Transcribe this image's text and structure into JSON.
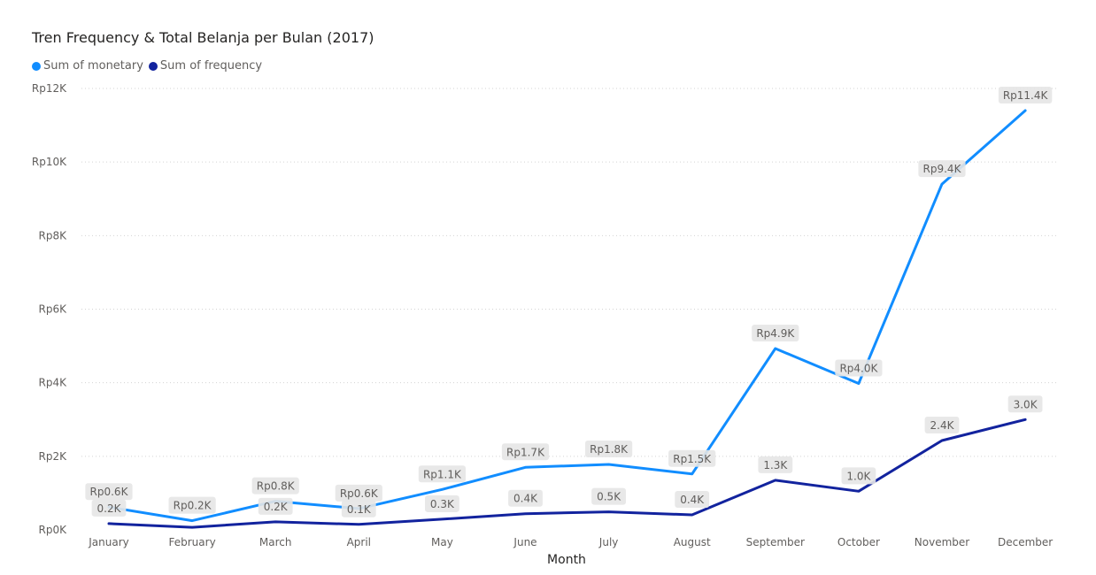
{
  "chart_data": {
    "type": "line",
    "title": "Tren Frequency & Total Belanja per Bulan (2017)",
    "xlabel": "Month",
    "ylabel": "",
    "categories": [
      "January",
      "February",
      "March",
      "April",
      "May",
      "June",
      "July",
      "August",
      "September",
      "October",
      "November",
      "December"
    ],
    "y_ticks": [
      "Rp0K",
      "Rp2K",
      "Rp4K",
      "Rp6K",
      "Rp8K",
      "Rp10K",
      "Rp12K"
    ],
    "ylim": [
      0,
      12000
    ],
    "grid": true,
    "legend_position": "top-left",
    "series": [
      {
        "name": "Sum of monetary",
        "color": "#118dff",
        "values": [
          620,
          250,
          780,
          580,
          1100,
          1700,
          1780,
          1520,
          4930,
          3980,
          9400,
          11400
        ],
        "labels": [
          "Rp0.6K",
          "Rp0.2K",
          "Rp0.8K",
          "Rp0.6K",
          "Rp1.1K",
          "Rp1.7K",
          "Rp1.8K",
          "Rp1.5K",
          "Rp4.9K",
          "Rp4.0K",
          "Rp9.4K",
          "Rp11.4K"
        ]
      },
      {
        "name": "Sum of frequency",
        "color": "#12239e",
        "values": [
          170,
          70,
          220,
          150,
          290,
          440,
          490,
          410,
          1350,
          1050,
          2430,
          3000
        ],
        "labels": [
          "0.2K",
          "",
          "0.2K",
          "0.1K",
          "0.3K",
          "0.4K",
          "0.5K",
          "0.4K",
          "1.3K",
          "1.0K",
          "2.4K",
          "3.0K"
        ]
      }
    ]
  }
}
